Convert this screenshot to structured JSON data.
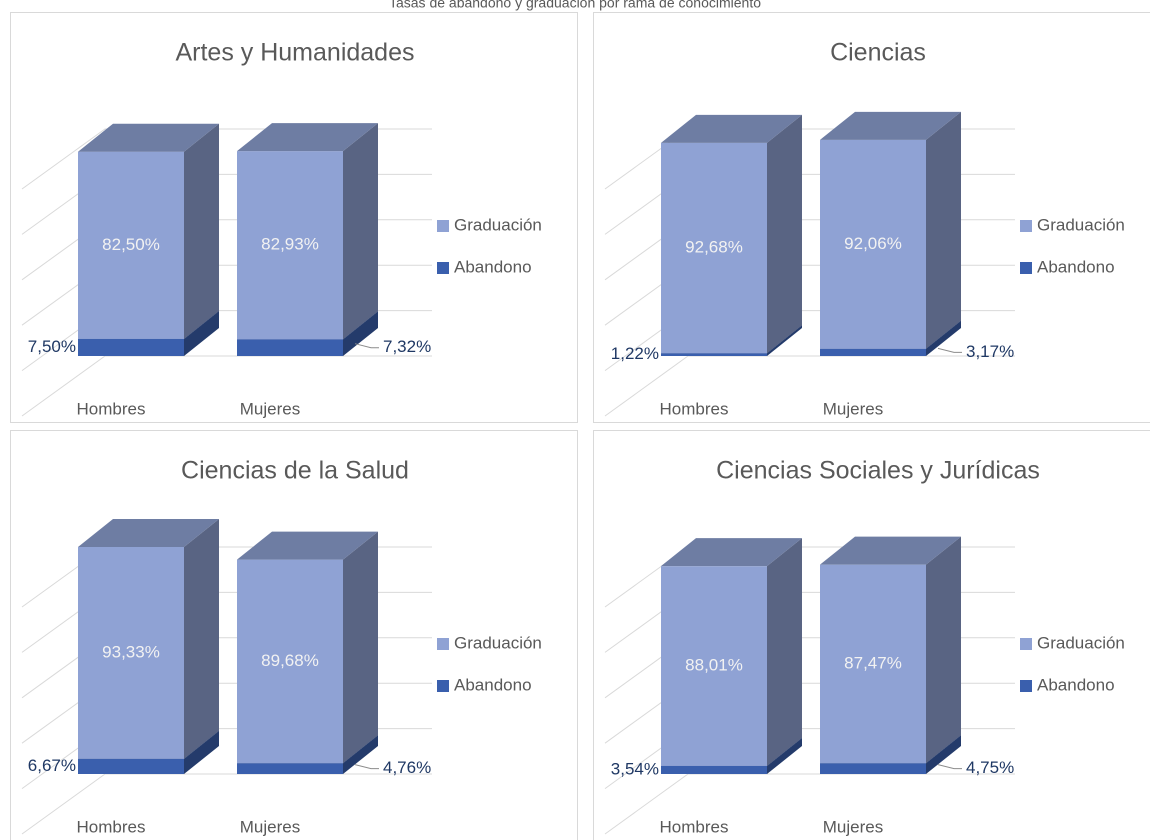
{
  "page_title": "Tasas de abandono y graduación por rama de conocimiento",
  "chart_data": [
    {
      "type": "bar",
      "stacked": true,
      "title": "Artes y Humanidades",
      "categories": [
        "Hombres",
        "Mujeres"
      ],
      "series": [
        {
          "name": "Abandono",
          "color": "#3a5fad",
          "values": [
            7.5,
            7.32
          ],
          "value_labels": [
            "7,50%",
            "7,32%"
          ]
        },
        {
          "name": "Graduación",
          "color": "#8fa2d4",
          "values": [
            82.5,
            82.93
          ],
          "value_labels": [
            "82,50%",
            "82,93%"
          ]
        }
      ],
      "ylim": [
        0,
        100
      ],
      "yticks": [
        0,
        20,
        40,
        60,
        80,
        100
      ],
      "grid": true
    },
    {
      "type": "bar",
      "stacked": true,
      "title": "Ciencias",
      "categories": [
        "Hombres",
        "Mujeres"
      ],
      "series": [
        {
          "name": "Abandono",
          "color": "#3a5fad",
          "values": [
            1.22,
            3.17
          ],
          "value_labels": [
            "1,22%",
            "3,17%"
          ]
        },
        {
          "name": "Graduación",
          "color": "#8fa2d4",
          "values": [
            92.68,
            92.06
          ],
          "value_labels": [
            "92,68%",
            "92,06%"
          ]
        }
      ],
      "ylim": [
        0,
        100
      ],
      "yticks": [
        0,
        20,
        40,
        60,
        80,
        100
      ],
      "grid": true
    },
    {
      "type": "bar",
      "stacked": true,
      "title": "Ciencias de la Salud",
      "categories": [
        "Hombres",
        "Mujeres"
      ],
      "series": [
        {
          "name": "Abandono",
          "color": "#3a5fad",
          "values": [
            6.67,
            4.76
          ],
          "value_labels": [
            "6,67%",
            "4,76%"
          ]
        },
        {
          "name": "Graduación",
          "color": "#8fa2d4",
          "values": [
            93.33,
            89.68
          ],
          "value_labels": [
            "93,33%",
            "89,68%"
          ]
        }
      ],
      "ylim": [
        0,
        100
      ],
      "yticks": [
        0,
        20,
        40,
        60,
        80,
        100
      ],
      "grid": true
    },
    {
      "type": "bar",
      "stacked": true,
      "title": "Ciencias Sociales y Jurídicas",
      "categories": [
        "Hombres",
        "Mujeres"
      ],
      "series": [
        {
          "name": "Abandono",
          "color": "#3a5fad",
          "values": [
            3.54,
            4.75
          ],
          "value_labels": [
            "3,54%",
            "4,75%"
          ]
        },
        {
          "name": "Graduación",
          "color": "#8fa2d4",
          "values": [
            88.01,
            87.47
          ],
          "value_labels": [
            "88,01%",
            "87,47%"
          ]
        }
      ],
      "ylim": [
        0,
        100
      ],
      "yticks": [
        0,
        20,
        40,
        60,
        80,
        100
      ],
      "grid": true
    }
  ]
}
